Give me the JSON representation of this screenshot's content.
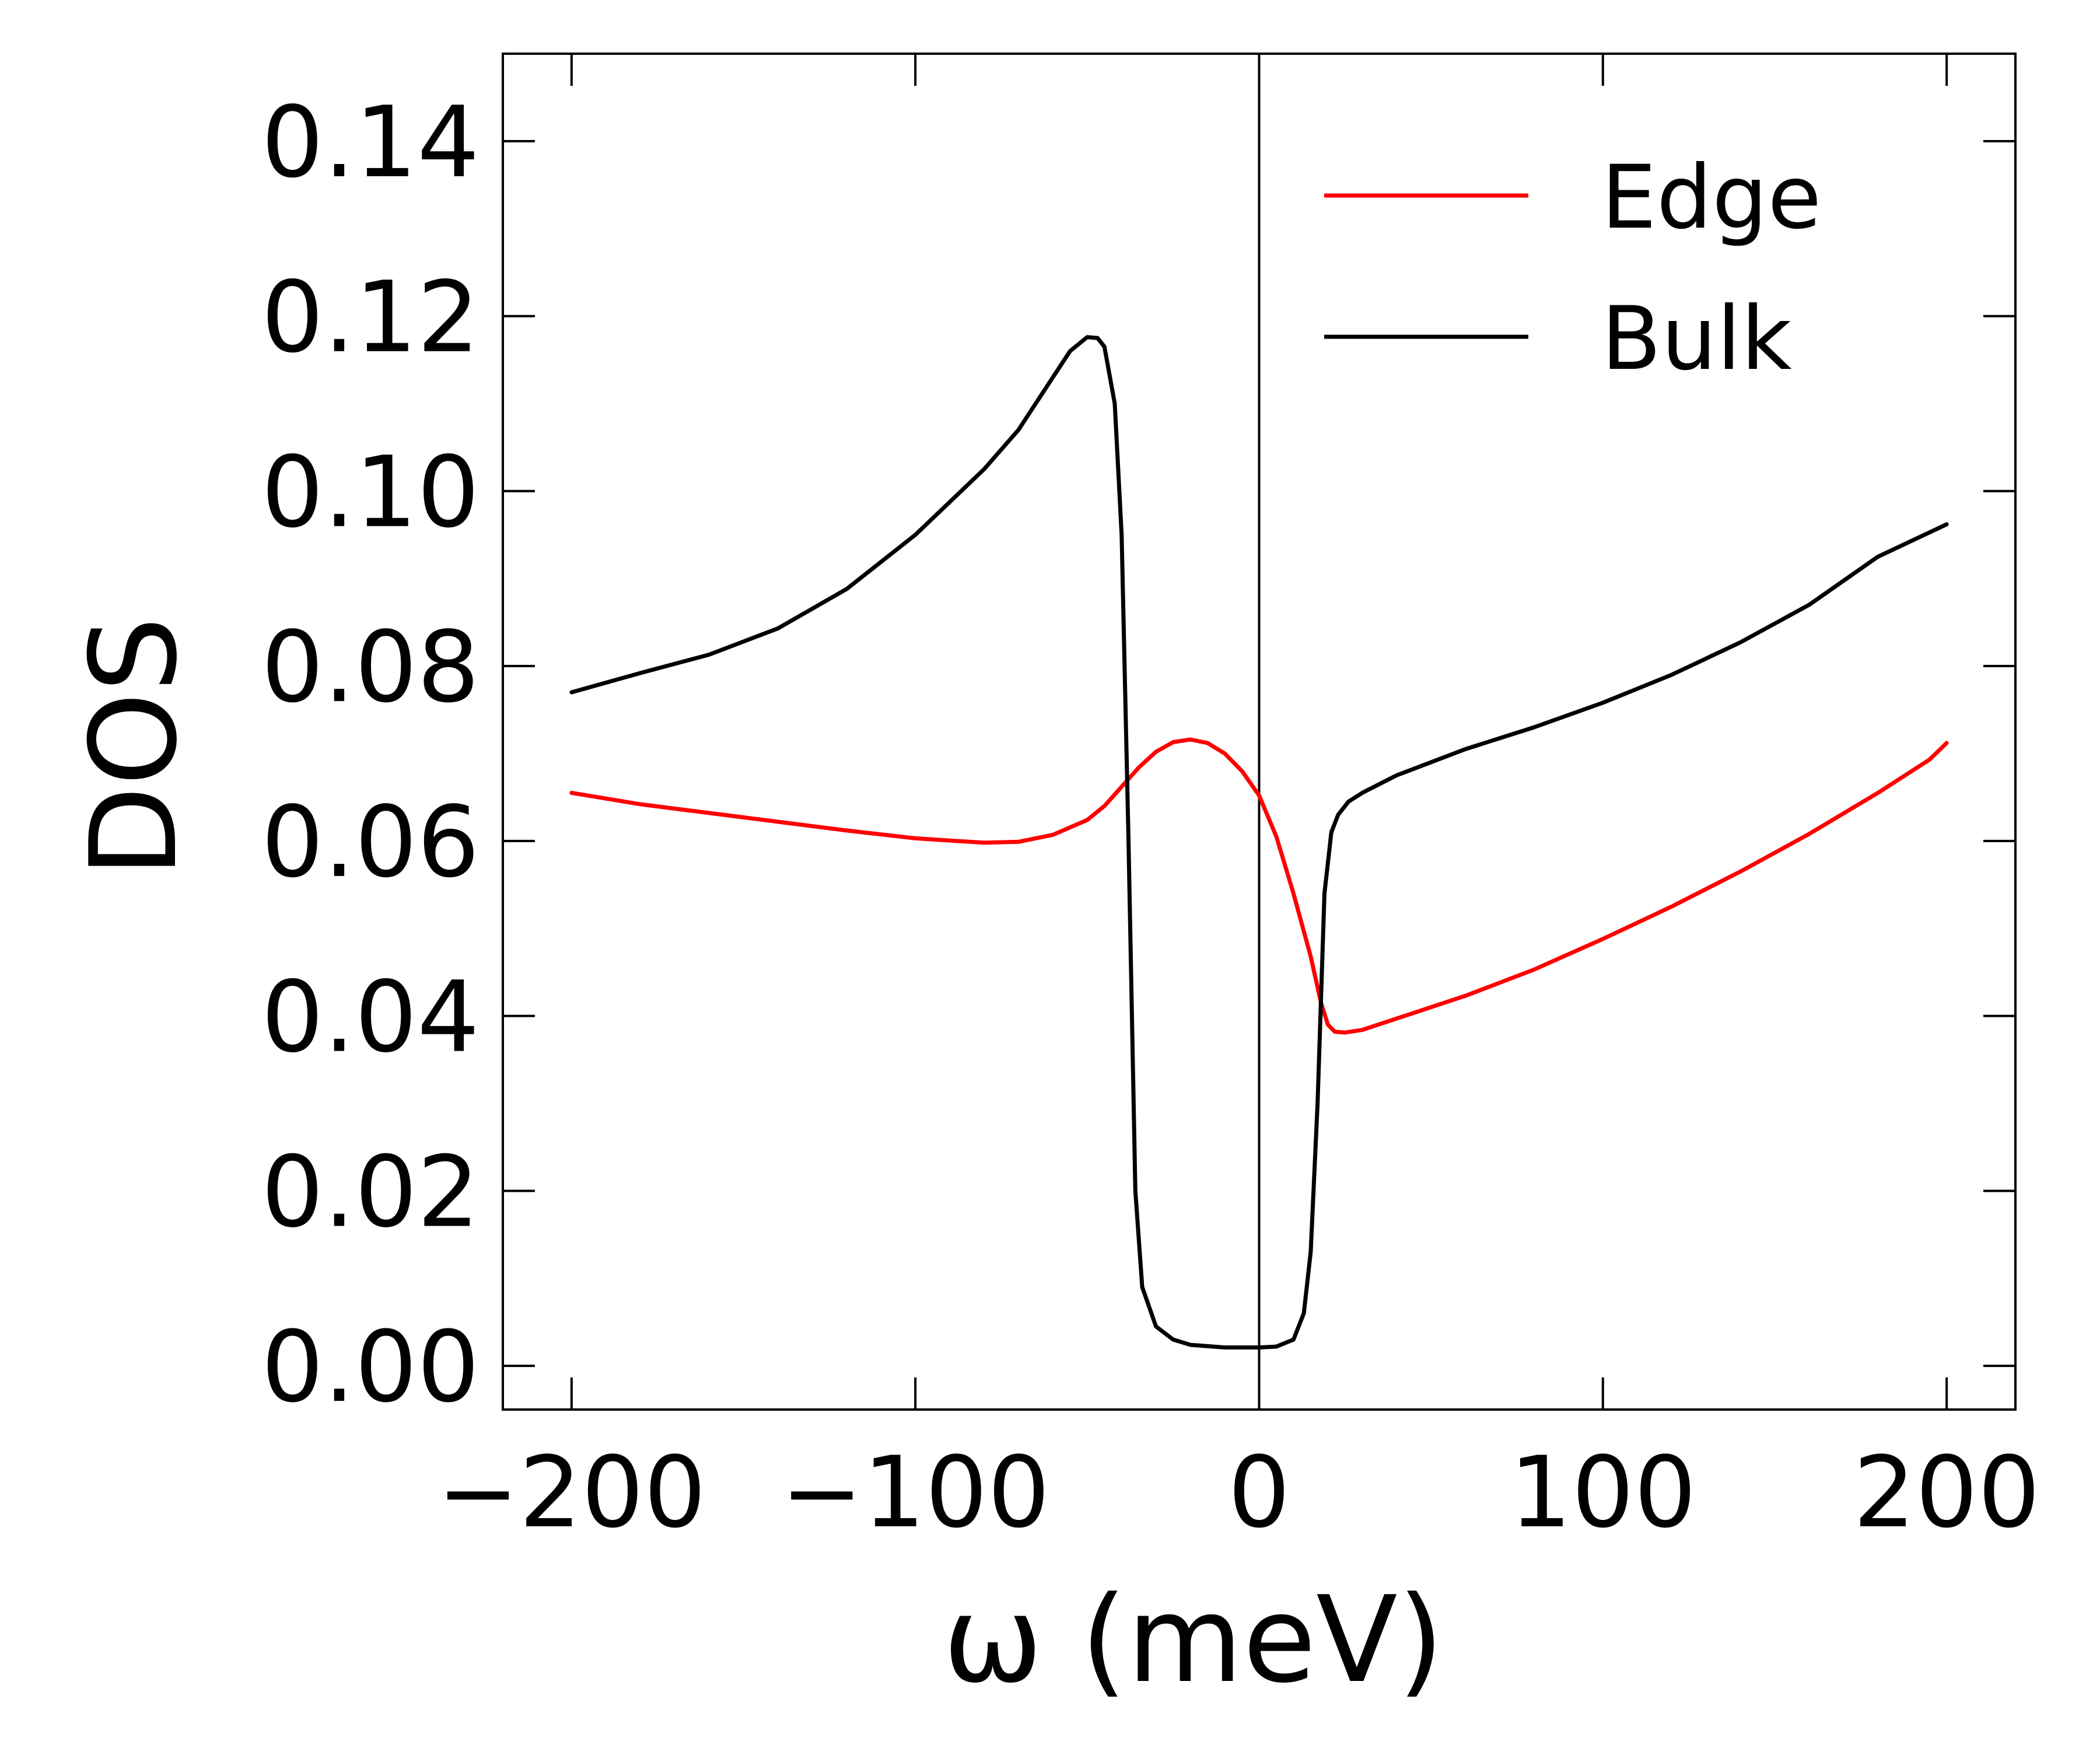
{
  "chart_data": {
    "type": "line",
    "title": "",
    "xlabel": "ω (meV)",
    "ylabel": "DOS",
    "xlim": [
      -220,
      220
    ],
    "ylim": [
      -0.005,
      0.15
    ],
    "xticks": [
      -200,
      -100,
      0,
      100,
      200
    ],
    "xtick_labels": [
      "−200",
      "−100",
      "0",
      "100",
      "200"
    ],
    "yticks": [
      0.0,
      0.02,
      0.04,
      0.06,
      0.08,
      0.1,
      0.12,
      0.14
    ],
    "ytick_labels": [
      "0.00",
      "0.02",
      "0.04",
      "0.06",
      "0.08",
      "0.10",
      "0.12",
      "0.14"
    ],
    "grid": false,
    "vertical_reference_line": 0,
    "legend_position": "top-right",
    "series": [
      {
        "name": "Edge",
        "color": "#ff0000",
        "points": [
          [
            -200,
            0.0655
          ],
          [
            -180,
            0.0642
          ],
          [
            -160,
            0.0632
          ],
          [
            -140,
            0.0622
          ],
          [
            -120,
            0.0612
          ],
          [
            -100,
            0.0603
          ],
          [
            -80,
            0.0598
          ],
          [
            -70,
            0.0599
          ],
          [
            -60,
            0.0607
          ],
          [
            -50,
            0.0624
          ],
          [
            -45,
            0.064
          ],
          [
            -40,
            0.0662
          ],
          [
            -35,
            0.0684
          ],
          [
            -30,
            0.0702
          ],
          [
            -25,
            0.0713
          ],
          [
            -20,
            0.0716
          ],
          [
            -15,
            0.0712
          ],
          [
            -10,
            0.07
          ],
          [
            -5,
            0.068
          ],
          [
            0,
            0.0652
          ],
          [
            5,
            0.0605
          ],
          [
            10,
            0.054
          ],
          [
            15,
            0.0468
          ],
          [
            18,
            0.0415
          ],
          [
            20,
            0.039
          ],
          [
            22,
            0.0382
          ],
          [
            25,
            0.0381
          ],
          [
            30,
            0.0384
          ],
          [
            40,
            0.0397
          ],
          [
            60,
            0.0423
          ],
          [
            80,
            0.0453
          ],
          [
            100,
            0.0488
          ],
          [
            120,
            0.0525
          ],
          [
            140,
            0.0565
          ],
          [
            160,
            0.0608
          ],
          [
            180,
            0.0655
          ],
          [
            195,
            0.0693
          ],
          [
            200,
            0.0712
          ]
        ]
      },
      {
        "name": "Bulk",
        "color": "#000000",
        "points": [
          [
            -200,
            0.077
          ],
          [
            -180,
            0.0792
          ],
          [
            -160,
            0.0813
          ],
          [
            -140,
            0.0843
          ],
          [
            -120,
            0.0888
          ],
          [
            -100,
            0.095
          ],
          [
            -80,
            0.1025
          ],
          [
            -70,
            0.107
          ],
          [
            -60,
            0.113
          ],
          [
            -55,
            0.116
          ],
          [
            -50,
            0.1176
          ],
          [
            -47,
            0.1175
          ],
          [
            -45,
            0.1165
          ],
          [
            -42,
            0.11
          ],
          [
            -40,
            0.095
          ],
          [
            -38,
            0.06
          ],
          [
            -36,
            0.02
          ],
          [
            -34,
            0.009
          ],
          [
            -30,
            0.0045
          ],
          [
            -25,
            0.003
          ],
          [
            -20,
            0.0024
          ],
          [
            -10,
            0.0021
          ],
          [
            0,
            0.0021
          ],
          [
            5,
            0.0022
          ],
          [
            10,
            0.003
          ],
          [
            13,
            0.006
          ],
          [
            15,
            0.013
          ],
          [
            17,
            0.03
          ],
          [
            19,
            0.054
          ],
          [
            21,
            0.061
          ],
          [
            23,
            0.063
          ],
          [
            26,
            0.0645
          ],
          [
            30,
            0.0655
          ],
          [
            40,
            0.0675
          ],
          [
            60,
            0.0705
          ],
          [
            80,
            0.073
          ],
          [
            100,
            0.0758
          ],
          [
            120,
            0.079
          ],
          [
            140,
            0.0827
          ],
          [
            160,
            0.087
          ],
          [
            180,
            0.0925
          ],
          [
            200,
            0.0962
          ]
        ]
      }
    ]
  },
  "colors": {
    "axes": "#000000",
    "background": "#ffffff"
  }
}
